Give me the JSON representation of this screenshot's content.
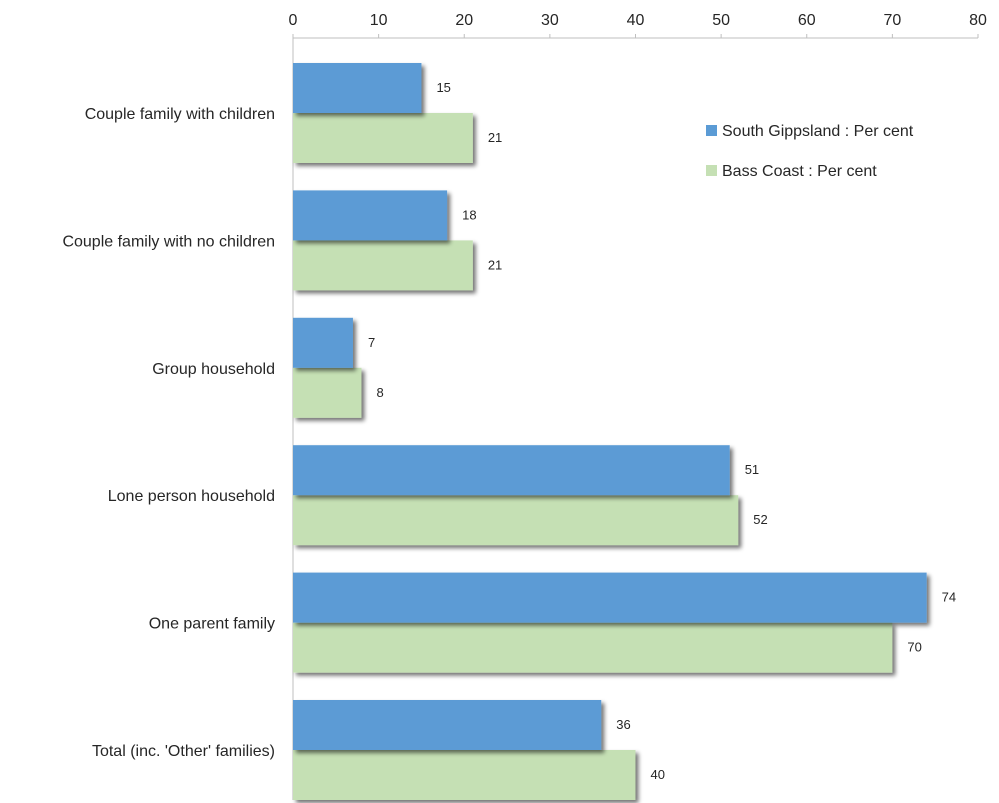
{
  "chart_data": {
    "type": "bar",
    "orientation": "horizontal",
    "title": "",
    "xlabel": "",
    "ylabel": "",
    "xlim": [
      0,
      80
    ],
    "x_ticks": [
      0,
      10,
      20,
      30,
      40,
      50,
      60,
      70,
      80
    ],
    "x_axis_position": "top",
    "grid": false,
    "legend_position": "top-right",
    "categories": [
      "Couple family with children",
      "Couple family with no children",
      "Group household",
      "Lone person household",
      "One parent family",
      "Total (inc. 'Other' families)"
    ],
    "series": [
      {
        "name": "South Gippsland : Per cent",
        "color": "#5b9bd5",
        "values": [
          15,
          18,
          7,
          51,
          74,
          36
        ]
      },
      {
        "name": "Bass Coast : Per cent",
        "color": "#c5e0b4",
        "values": [
          21,
          21,
          8,
          52,
          70,
          40
        ]
      }
    ]
  }
}
